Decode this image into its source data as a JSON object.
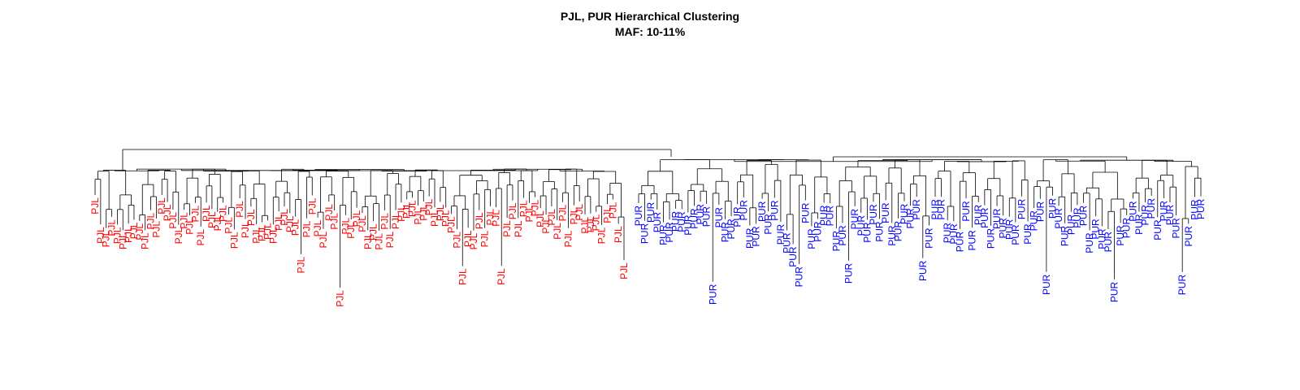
{
  "chart": {
    "title": "PJL, PUR Hierarchical Clustering",
    "subtitle": "MAF: 10-11%"
  },
  "colors": {
    "PJL": "#ff0000",
    "PUR": "#0000ff",
    "branch": "#000000"
  },
  "chart_data": {
    "type": "dendrogram",
    "groups": [
      {
        "name": "PJL",
        "leaf_count": 96
      },
      {
        "name": "PUR",
        "leaf_count": 92
      }
    ],
    "leaves": [
      "PJL",
      "PJL",
      "PJL",
      "PJL",
      "PJL",
      "PJL",
      "PJL",
      "PJL",
      "PJL",
      "PJL",
      "PJL",
      "PJL",
      "PJL",
      "PJL",
      "PJL",
      "PJL",
      "PJL",
      "PJL",
      "PJL",
      "PJL",
      "PJL",
      "PJL",
      "PJL",
      "PJL",
      "PJL",
      "PJL",
      "PJL",
      "PJL",
      "PJL",
      "PJL",
      "PJL",
      "PJL",
      "PJL",
      "PJL",
      "PJL",
      "PJL",
      "PJL",
      "PJL",
      "PJL",
      "PJL",
      "PJL",
      "PJL",
      "PJL",
      "PJL",
      "PJL",
      "PJL",
      "PJL",
      "PJL",
      "PJL",
      "PJL",
      "PJL",
      "PJL",
      "PJL",
      "PJL",
      "PJL",
      "PJL",
      "PJL",
      "PJL",
      "PJL",
      "PJL",
      "PJL",
      "PJL",
      "PJL",
      "PJL",
      "PJL",
      "PJL",
      "PJL",
      "PJL",
      "PJL",
      "PJL",
      "PJL",
      "PJL",
      "PJL",
      "PJL",
      "PJL",
      "PJL",
      "PJL",
      "PJL",
      "PJL",
      "PJL",
      "PJL",
      "PJL",
      "PJL",
      "PJL",
      "PJL",
      "PJL",
      "PJL",
      "PJL",
      "PJL",
      "PJL",
      "PJL",
      "PJL",
      "PJL",
      "PJL",
      "PJL",
      "PJL",
      "PUR",
      "PUR",
      "PUR",
      "PUR",
      "PUR",
      "PUR",
      "PUR",
      "PUR",
      "PUR",
      "PUR",
      "PUR",
      "PUR",
      "PUR",
      "PUR",
      "PUR",
      "PUR",
      "PUR",
      "PUR",
      "PUR",
      "PUR",
      "PUR",
      "PUR",
      "PUR",
      "PUR",
      "PUR",
      "PUR",
      "PUR",
      "PUR",
      "PUR",
      "PUR",
      "PUR",
      "PUR",
      "PUR",
      "PUR",
      "PUR",
      "PUR",
      "PUR",
      "PUR",
      "PUR",
      "PUR",
      "PUR",
      "PUR",
      "PUR",
      "PUR",
      "PUR",
      "PUR",
      "PUR",
      "PUR",
      "PUR",
      "PUR",
      "PUR",
      "PUR",
      "PUR",
      "PUR",
      "PUR",
      "PUR",
      "PUR",
      "PUR",
      "PUR",
      "PUR",
      "PUR",
      "PUR",
      "PUR",
      "PUR",
      "PUR",
      "PUR",
      "PUR",
      "PUR",
      "PUR",
      "PUR",
      "PUR",
      "PUR",
      "PUR",
      "PUR",
      "PUR",
      "PUR",
      "PUR",
      "PUR",
      "PUR",
      "PUR",
      "PUR",
      "PUR",
      "PUR",
      "PUR",
      "PUR",
      "PUR",
      "PUR",
      "PUR",
      "PUR",
      "PUR",
      "PUR",
      "PUR"
    ],
    "top_split": [
      "PJL",
      "PUR"
    ]
  }
}
